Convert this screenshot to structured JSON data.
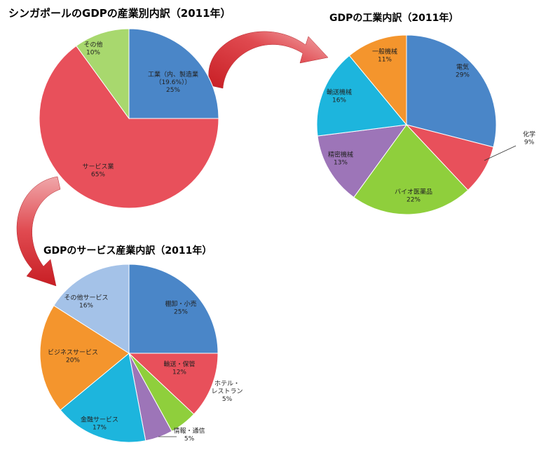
{
  "chart_data": [
    {
      "type": "pie",
      "title": "シンガポールのGDPの産業別内訳（2011年）",
      "slices": [
        {
          "name": "工業（内、製造業\n（19.6%））",
          "value": 25,
          "label": "25%",
          "color": "#4a86c8"
        },
        {
          "name": "サービス業",
          "value": 65,
          "label": "65%",
          "color": "#e8505b"
        },
        {
          "name": "その他",
          "value": 10,
          "label": "10%",
          "color": "#a8d86e"
        }
      ]
    },
    {
      "type": "pie",
      "title": "GDPの工業内訳（2011年）",
      "slices": [
        {
          "name": "電気",
          "value": 29,
          "label": "29%",
          "color": "#4a86c8"
        },
        {
          "name": "化学",
          "value": 9,
          "label": "9%",
          "color": "#e8505b"
        },
        {
          "name": "バイオ医薬品",
          "value": 22,
          "label": "22%",
          "color": "#8fcf3c"
        },
        {
          "name": "精密機械",
          "value": 13,
          "label": "13%",
          "color": "#9d75b8"
        },
        {
          "name": "輸送機械",
          "value": 16,
          "label": "16%",
          "color": "#1db5dd"
        },
        {
          "name": "一般機械",
          "value": 11,
          "label": "11%",
          "color": "#f4952d"
        }
      ]
    },
    {
      "type": "pie",
      "title": "GDPのサービス産業内訳（2011年）",
      "slices": [
        {
          "name": "棚卸・小売",
          "value": 25,
          "label": "25%",
          "color": "#4a86c8"
        },
        {
          "name": "輸送・保管",
          "value": 12,
          "label": "12%",
          "color": "#e8505b"
        },
        {
          "name": "ホテル・\nレストラン",
          "value": 5,
          "label": "5%",
          "color": "#8fcf3c"
        },
        {
          "name": "情報・通信",
          "value": 5,
          "label": "5%",
          "color": "#9d75b8"
        },
        {
          "name": "金融サービス",
          "value": 17,
          "label": "17%",
          "color": "#1db5dd"
        },
        {
          "name": "ビジネスサービス",
          "value": 20,
          "label": "20%",
          "color": "#f4952d"
        },
        {
          "name": "その他サービス",
          "value": 16,
          "label": "16%",
          "color": "#a4c2e8"
        }
      ]
    }
  ]
}
